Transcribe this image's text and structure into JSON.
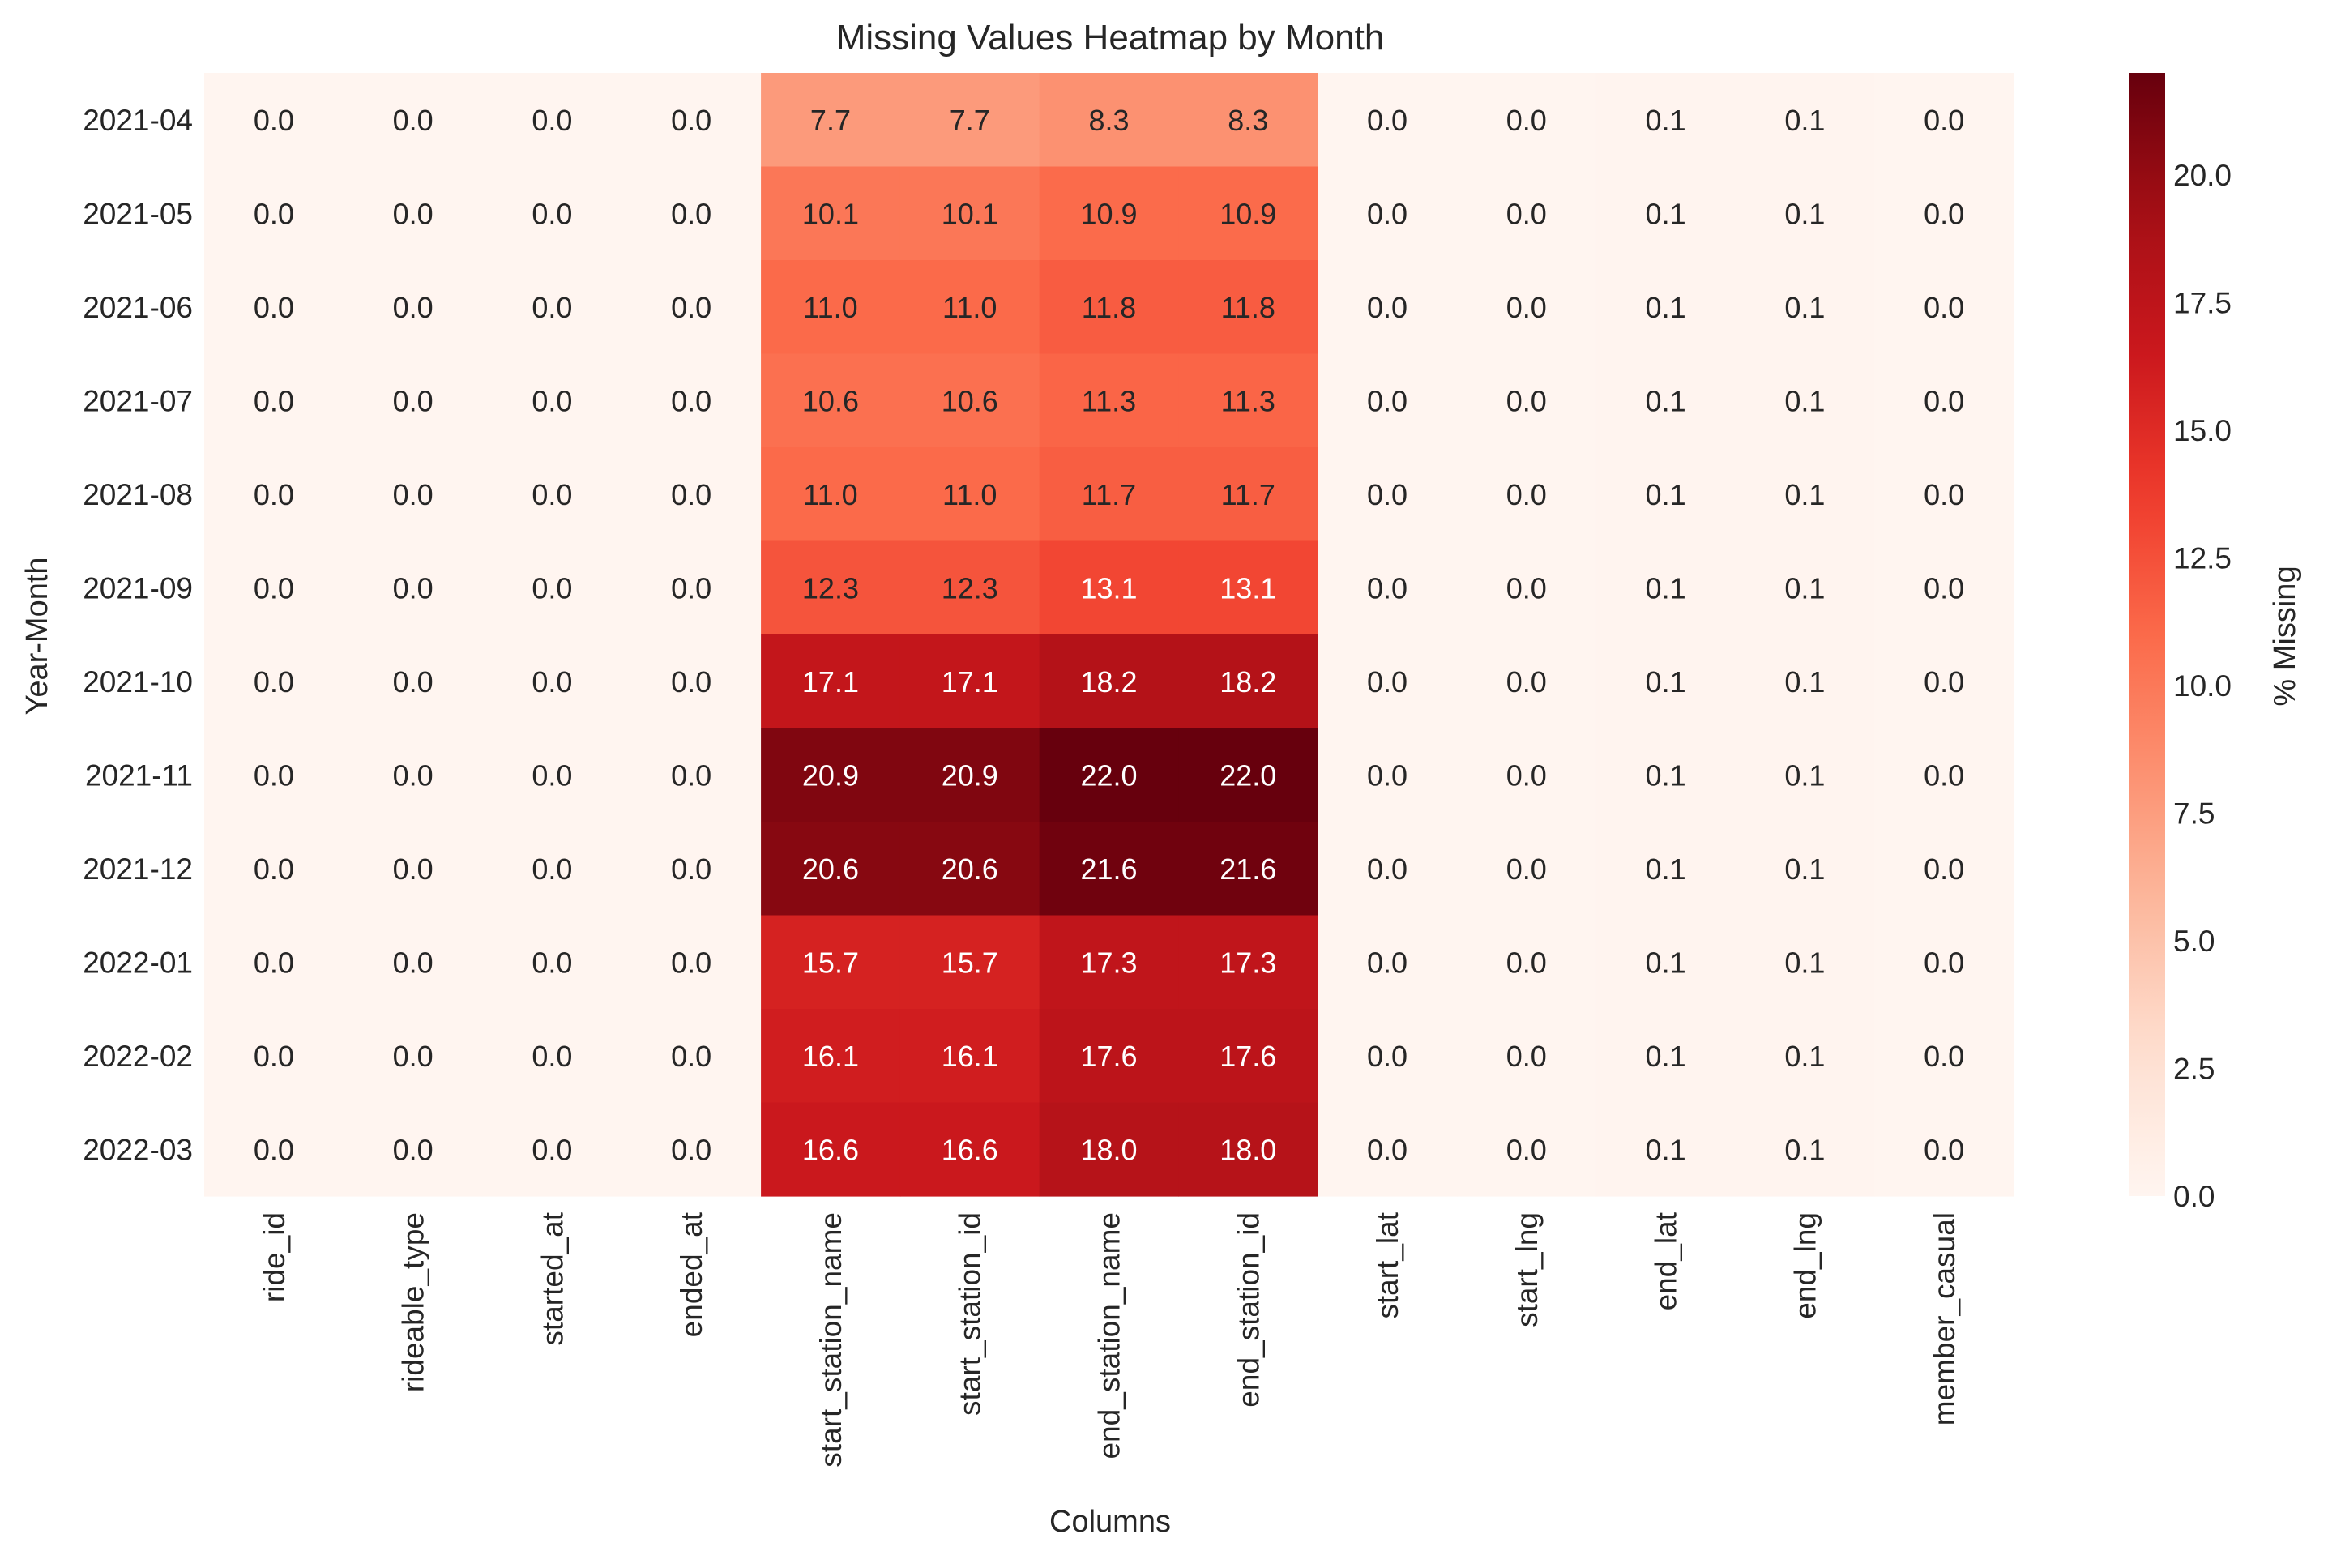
{
  "chart_data": {
    "type": "heatmap",
    "title": "Missing Values Heatmap by Month",
    "xlabel": "Columns",
    "ylabel": "Year-Month",
    "colorbar_label": "% Missing",
    "colormap": "Reds",
    "vmin": 0.0,
    "vmax": 22.0,
    "colorbar_ticks": [
      "0.0",
      "2.5",
      "5.0",
      "7.5",
      "10.0",
      "12.5",
      "15.0",
      "17.5",
      "20.0"
    ],
    "columns": [
      "ride_id",
      "rideable_type",
      "started_at",
      "ended_at",
      "start_station_name",
      "start_station_id",
      "end_station_name",
      "end_station_id",
      "start_lat",
      "start_lng",
      "end_lat",
      "end_lng",
      "member_casual"
    ],
    "rows": [
      "2021-04",
      "2021-05",
      "2021-06",
      "2021-07",
      "2021-08",
      "2021-09",
      "2021-10",
      "2021-11",
      "2021-12",
      "2022-01",
      "2022-02",
      "2022-03"
    ],
    "values": [
      [
        0.0,
        0.0,
        0.0,
        0.0,
        7.7,
        7.7,
        8.3,
        8.3,
        0.0,
        0.0,
        0.1,
        0.1,
        0.0
      ],
      [
        0.0,
        0.0,
        0.0,
        0.0,
        10.1,
        10.1,
        10.9,
        10.9,
        0.0,
        0.0,
        0.1,
        0.1,
        0.0
      ],
      [
        0.0,
        0.0,
        0.0,
        0.0,
        11.0,
        11.0,
        11.8,
        11.8,
        0.0,
        0.0,
        0.1,
        0.1,
        0.0
      ],
      [
        0.0,
        0.0,
        0.0,
        0.0,
        10.6,
        10.6,
        11.3,
        11.3,
        0.0,
        0.0,
        0.1,
        0.1,
        0.0
      ],
      [
        0.0,
        0.0,
        0.0,
        0.0,
        11.0,
        11.0,
        11.7,
        11.7,
        0.0,
        0.0,
        0.1,
        0.1,
        0.0
      ],
      [
        0.0,
        0.0,
        0.0,
        0.0,
        12.3,
        12.3,
        13.1,
        13.1,
        0.0,
        0.0,
        0.1,
        0.1,
        0.0
      ],
      [
        0.0,
        0.0,
        0.0,
        0.0,
        17.1,
        17.1,
        18.2,
        18.2,
        0.0,
        0.0,
        0.1,
        0.1,
        0.0
      ],
      [
        0.0,
        0.0,
        0.0,
        0.0,
        20.9,
        20.9,
        22.0,
        22.0,
        0.0,
        0.0,
        0.1,
        0.1,
        0.0
      ],
      [
        0.0,
        0.0,
        0.0,
        0.0,
        20.6,
        20.6,
        21.6,
        21.6,
        0.0,
        0.0,
        0.1,
        0.1,
        0.0
      ],
      [
        0.0,
        0.0,
        0.0,
        0.0,
        15.7,
        15.7,
        17.3,
        17.3,
        0.0,
        0.0,
        0.1,
        0.1,
        0.0
      ],
      [
        0.0,
        0.0,
        0.0,
        0.0,
        16.1,
        16.1,
        17.6,
        17.6,
        0.0,
        0.0,
        0.1,
        0.1,
        0.0
      ],
      [
        0.0,
        0.0,
        0.0,
        0.0,
        16.6,
        16.6,
        18.0,
        18.0,
        0.0,
        0.0,
        0.1,
        0.1,
        0.0
      ]
    ],
    "value_format": "0.1f",
    "grid": false
  }
}
